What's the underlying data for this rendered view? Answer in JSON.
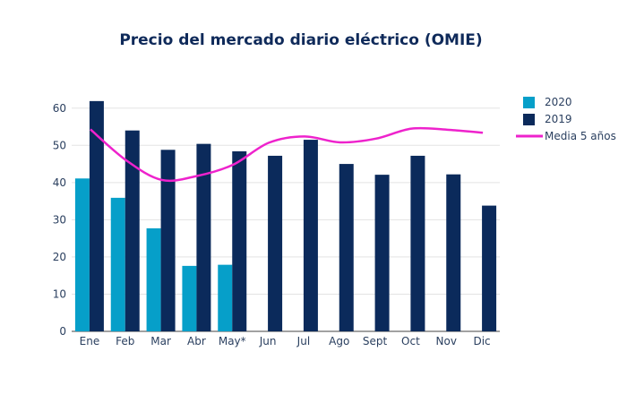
{
  "chart_data": {
    "type": "bar",
    "title": "Precio del mercado diario eléctrico (OMIE)",
    "xlabel": "",
    "ylabel": "",
    "ylim": [
      0,
      65
    ],
    "yticks": [
      0,
      10,
      20,
      30,
      40,
      50,
      60
    ],
    "grid": true,
    "legend_position": "top-right",
    "categories": [
      "Ene",
      "Feb",
      "Mar",
      "Abr",
      "May*",
      "Jun",
      "Jul",
      "Ago",
      "Sept",
      "Oct",
      "Nov",
      "Dic"
    ],
    "series": [
      {
        "name": "2020",
        "kind": "bar",
        "color": "#069fc9",
        "values": [
          41.1,
          35.9,
          27.7,
          17.6,
          17.9,
          null,
          null,
          null,
          null,
          null,
          null,
          null
        ]
      },
      {
        "name": "2019",
        "kind": "bar",
        "color": "#0b2a5b",
        "values": [
          61.9,
          54.0,
          48.8,
          50.4,
          48.4,
          47.2,
          51.5,
          45.0,
          42.1,
          47.2,
          42.2,
          33.8
        ]
      },
      {
        "name": "Media 5 años",
        "kind": "line",
        "color": "#ee22cc",
        "values": [
          54.3,
          46.0,
          40.7,
          41.8,
          44.8,
          50.7,
          52.4,
          50.8,
          51.8,
          54.5,
          54.2,
          53.4
        ]
      }
    ]
  }
}
